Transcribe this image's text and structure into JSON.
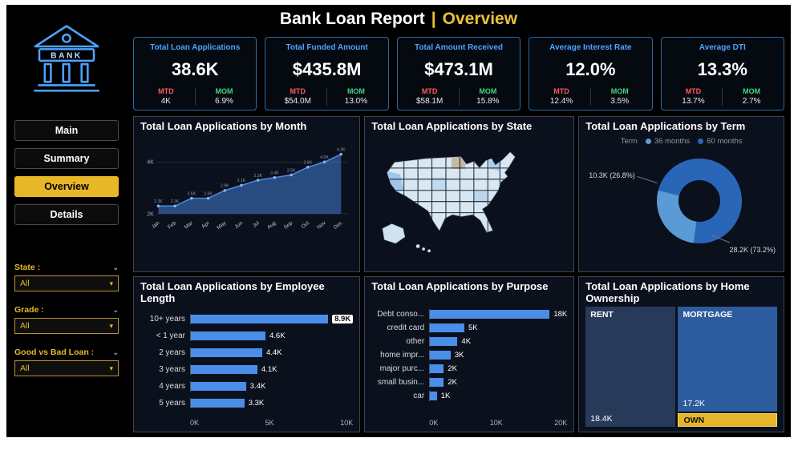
{
  "theme": {
    "accent_blue": "#4a8fe7",
    "accent_yellow": "#e8b727",
    "kpi_title_blue": "#4fa3ff",
    "mtd_red": "#ff5a5a",
    "mom_green": "#3fd67f"
  },
  "header": {
    "title": "Bank Loan Report",
    "separator": "|",
    "page_name": "Overview"
  },
  "sidebar": {
    "logo_label": "BANK",
    "nav_items": [
      {
        "label": "Main",
        "active": false
      },
      {
        "label": "Summary",
        "active": false
      },
      {
        "label": "Overview",
        "active": true
      },
      {
        "label": "Details",
        "active": false
      }
    ],
    "filters": [
      {
        "label": "State :",
        "value": "All"
      },
      {
        "label": "Grade :",
        "value": "All"
      },
      {
        "label": "Good vs Bad Loan :",
        "value": "All"
      }
    ]
  },
  "kpis": [
    {
      "title": "Total Loan Applications",
      "value": "38.6K",
      "mtd_label": "MTD",
      "mtd_value": "4K",
      "mom_label": "MOM",
      "mom_value": "6.9%"
    },
    {
      "title": "Total Funded Amount",
      "value": "$435.8M",
      "mtd_label": "MTD",
      "mtd_value": "$54.0M",
      "mom_label": "MOM",
      "mom_value": "13.0%"
    },
    {
      "title": "Total Amount Received",
      "value": "$473.1M",
      "mtd_label": "MTD",
      "mtd_value": "$58.1M",
      "mom_label": "MOM",
      "mom_value": "15.8%"
    },
    {
      "title": "Average Interest Rate",
      "value": "12.0%",
      "mtd_label": "MTD",
      "mtd_value": "12.4%",
      "mom_label": "MOM",
      "mom_value": "3.5%"
    },
    {
      "title": "Average DTI",
      "value": "13.3%",
      "mtd_label": "MTD",
      "mtd_value": "13.7%",
      "mom_label": "MOM",
      "mom_value": "2.7%"
    }
  ],
  "chart_data": [
    {
      "type": "area",
      "title": "Total Loan Applications by Month",
      "x": [
        "Jan",
        "Feb",
        "Mar",
        "Apr",
        "May",
        "Jun",
        "Jul",
        "Aug",
        "Sep",
        "Oct",
        "Nov",
        "Dec"
      ],
      "values": [
        2.3,
        2.3,
        2.6,
        2.6,
        2.9,
        3.1,
        3.3,
        3.4,
        3.5,
        3.8,
        4.0,
        4.3
      ],
      "labels": [
        "2.3K",
        "2.3K",
        "2.6K",
        "2.6K",
        "2.9K",
        "3.1K",
        "3.3K",
        "3.4K",
        "3.5K",
        "3.8K",
        "4.0K",
        "4.3K"
      ],
      "unit": "K",
      "ylim": [
        2,
        4.6
      ],
      "yticks": [
        {
          "v": 2,
          "label": "2K"
        },
        {
          "v": 4,
          "label": "4K"
        }
      ]
    },
    {
      "type": "map",
      "title": "Total Loan Applications by State",
      "region": "United States"
    },
    {
      "type": "donut",
      "title": "Total Loan Applications by Term",
      "legend_title": "Term",
      "slices": [
        {
          "name": "36 months",
          "value": "10.3K",
          "pct": 26.8,
          "label": "10.3K (26.8%)",
          "color": "#5b9bd5"
        },
        {
          "name": "60 months",
          "value": "28.2K",
          "pct": 73.2,
          "label": "28.2K (73.2%)",
          "color": "#2a66b8"
        }
      ]
    },
    {
      "type": "bar",
      "title": "Total Loan Applications by Employee Length",
      "categories": [
        "10+ years",
        "< 1 year",
        "2 years",
        "3 years",
        "4 years",
        "5 years"
      ],
      "values": [
        8.9,
        4.6,
        4.4,
        4.1,
        3.4,
        3.3
      ],
      "labels": [
        "8.9K",
        "4.6K",
        "4.4K",
        "4.1K",
        "3.4K",
        "3.3K"
      ],
      "xmax": 10,
      "xticks": [
        "0K",
        "5K",
        "10K"
      ]
    },
    {
      "type": "bar",
      "title": "Total Loan Applications by Purpose",
      "categories": [
        "Debt conso...",
        "credit card",
        "other",
        "home impr...",
        "major purc...",
        "small busin...",
        "car"
      ],
      "values": [
        18,
        5,
        4,
        3,
        2,
        2,
        1
      ],
      "labels": [
        "18K",
        "5K",
        "4K",
        "3K",
        "2K",
        "2K",
        "1K"
      ],
      "xmax": 20,
      "xticks": [
        "0K",
        "10K",
        "20K"
      ]
    },
    {
      "type": "treemap",
      "title": "Total Loan Applications by Home Ownership",
      "nodes": [
        {
          "name": "RENT",
          "value": "18.4K",
          "color": "#283a5a"
        },
        {
          "name": "MORTGAGE",
          "value": "17.2K",
          "color": "#2d5c9e"
        },
        {
          "name": "OWN",
          "value": "",
          "color": "#e7b52a"
        }
      ]
    }
  ]
}
